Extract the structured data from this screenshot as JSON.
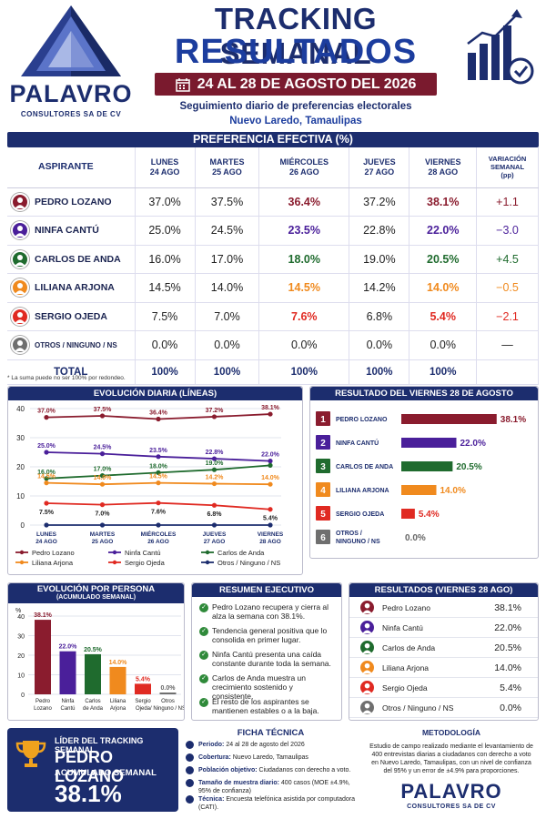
{
  "brand": {
    "name": "PALAVRO",
    "sub": "CONSULTORES SA DE CV"
  },
  "header": {
    "title1": "TRACKING SEMANAL",
    "title2": "RESULTADOS",
    "date": "24 AL 28 DE AGOSTO DEL 2026",
    "subtitle": "Seguimiento diario de preferencias electorales",
    "location": "Nuevo Laredo, Tamaulipas"
  },
  "colors": {
    "navy": "#1c2d6e",
    "pedro": "#8a1c2e",
    "ninfa": "#4a1f9a",
    "carlos": "#1f6b2e",
    "liliana": "#f08a1e",
    "sergio": "#e02a22",
    "otros": "#6f6f6f"
  },
  "table": {
    "title": "PREFERENCIA EFECTIVA (%)",
    "headers": [
      {
        "l1": "ASPIRANTE",
        "l2": ""
      },
      {
        "l1": "LUNES",
        "l2": "24 AGO"
      },
      {
        "l1": "MARTES",
        "l2": "25 AGO"
      },
      {
        "l1": "MIÉRCOLES",
        "l2": "26 AGO"
      },
      {
        "l1": "JUEVES",
        "l2": "27 AGO"
      },
      {
        "l1": "VIERNES",
        "l2": "28 AGO"
      },
      {
        "l1": "VARIACIÓN SEMANAL",
        "l2": "(pp)"
      }
    ],
    "rows": [
      {
        "name": "PEDRO LOZANO",
        "color": "#8a1c2e",
        "vals": [
          "37.0%",
          "37.5%",
          "36.4%",
          "37.2%",
          "38.1%"
        ],
        "var": "+1.1"
      },
      {
        "name": "NINFA CANTÚ",
        "color": "#4a1f9a",
        "vals": [
          "25.0%",
          "24.5%",
          "23.5%",
          "22.8%",
          "22.0%"
        ],
        "var": "−3.0"
      },
      {
        "name": "CARLOS DE ANDA",
        "color": "#1f6b2e",
        "vals": [
          "16.0%",
          "17.0%",
          "18.0%",
          "19.0%",
          "20.5%"
        ],
        "var": "+4.5"
      },
      {
        "name": "LILIANA ARJONA",
        "color": "#f08a1e",
        "vals": [
          "14.5%",
          "14.0%",
          "14.5%",
          "14.2%",
          "14.0%"
        ],
        "var": "−0.5"
      },
      {
        "name": "SERGIO OJEDA",
        "color": "#e02a22",
        "vals": [
          "7.5%",
          "7.0%",
          "7.6%",
          "6.8%",
          "5.4%"
        ],
        "var": "−2.1"
      },
      {
        "name": "OTROS / NINGUNO / NS",
        "color": "#6f6f6f",
        "vals": [
          "0.0%",
          "0.0%",
          "0.0%",
          "0.0%",
          "0.0%"
        ],
        "var": "—"
      }
    ],
    "total": {
      "label": "TOTAL",
      "vals": [
        "100%",
        "100%",
        "100%",
        "100%",
        "100%"
      ]
    },
    "note": "* La suma puede no ser 100% por redondeo."
  },
  "chart_data": [
    {
      "type": "line",
      "title": "EVOLUCIÓN DIARIA (LÍNEAS)",
      "x": [
        "LUNES 24 AGO",
        "MARTES 25 AGO",
        "MIÉRCOLES 26 AGO",
        "JUEVES 27 AGO",
        "VIERNES 28 AGO"
      ],
      "ylim": [
        0,
        40
      ],
      "yticks": [
        0,
        10,
        20,
        30,
        40
      ],
      "series": [
        {
          "name": "Pedro Lozano",
          "color": "#8a1c2e",
          "values": [
            37.0,
            37.5,
            36.4,
            37.2,
            38.1
          ],
          "labels": [
            "37.0%",
            "37.5%",
            "36.4%",
            "37.2%",
            "38.1%"
          ]
        },
        {
          "name": "Ninfa Cantú",
          "color": "#4a1f9a",
          "values": [
            25.0,
            24.5,
            23.5,
            22.8,
            22.0
          ],
          "labels": [
            "25.0%",
            "24.5%",
            "23.5%",
            "22.8%",
            "22.0%"
          ]
        },
        {
          "name": "Carlos de Anda",
          "color": "#1f6b2e",
          "values": [
            16.0,
            17.0,
            18.0,
            19.0,
            20.5
          ],
          "labels": [
            "16.0%",
            "17.0%",
            "18.0%",
            "19.0%",
            ""
          ]
        },
        {
          "name": "Liliana Arjona",
          "color": "#f08a1e",
          "values": [
            14.5,
            14.0,
            14.5,
            14.2,
            14.0
          ],
          "labels": [
            "14.5%",
            "14.0%",
            "14.5%",
            "14.2%",
            "14.0%"
          ]
        },
        {
          "name": "Sergio Ojeda",
          "color": "#e02a22",
          "values": [
            7.5,
            7.0,
            7.6,
            6.8,
            5.4
          ],
          "labels": [
            "7.5%",
            "7.0%",
            "7.6%",
            "6.8%",
            "5.4%"
          ]
        },
        {
          "name": "Otros / Ninguno / NS",
          "color": "#1c2d6e",
          "values": [
            0,
            0,
            0,
            0,
            0
          ],
          "labels": [
            "",
            "",
            "",
            "",
            ""
          ]
        }
      ]
    },
    {
      "type": "bar",
      "title": "RESULTADO DEL VIERNES 28 DE AGOSTO",
      "categories": [
        "PEDRO LOZANO",
        "NINFA CANTÚ",
        "CARLOS DE ANDA",
        "LILIANA ARJONA",
        "SERGIO OJEDA",
        "OTROS / NINGUNO / NS"
      ],
      "ranks": [
        "1",
        "2",
        "3",
        "4",
        "5",
        "6"
      ],
      "values": [
        38.1,
        22.0,
        20.5,
        14.0,
        5.4,
        0.0
      ],
      "labels": [
        "38.1%",
        "22.0%",
        "20.5%",
        "14.0%",
        "5.4%",
        "0.0%"
      ],
      "colors": [
        "#8a1c2e",
        "#4a1f9a",
        "#1f6b2e",
        "#f08a1e",
        "#e02a22",
        "#6f6f6f"
      ],
      "xlim": [
        0,
        40
      ]
    },
    {
      "type": "bar",
      "title": "EVOLUCIÓN POR PERSONA",
      "subtitle": "(ACUMULADO SEMANAL)",
      "ylabel": "%",
      "categories": [
        "Pedro Lozano",
        "Ninfa Cantú",
        "Carlos de Anda",
        "Liliana Arjona",
        "Sergio Ojeda",
        "Otros / Ninguno / NS"
      ],
      "values": [
        38.1,
        22.0,
        20.5,
        14.0,
        5.4,
        0.0
      ],
      "labels": [
        "38.1%",
        "22.0%",
        "20.5%",
        "14.0%",
        "5.4%",
        "0.0%"
      ],
      "colors": [
        "#8a1c2e",
        "#4a1f9a",
        "#1f6b2e",
        "#f08a1e",
        "#e02a22",
        "#6f6f6f"
      ],
      "ylim": [
        0,
        40
      ],
      "yticks": [
        0,
        10,
        20,
        30,
        40
      ]
    }
  ],
  "resumen": {
    "title": "RESUMEN EJECUTIVO",
    "items": [
      "Pedro Lozano recupera y cierra al alza la semana con 38.1%.",
      "Tendencia general positiva que lo consolida en primer lugar.",
      "Ninfa Cantú presenta una caída constante durante toda la semana.",
      "Carlos de Anda muestra un crecimiento sostenido y consistente.",
      "El resto de los aspirantes se mantienen estables o a la baja."
    ]
  },
  "res28": {
    "title": "RESULTADOS (VIERNES 28 AGO)",
    "rows": [
      {
        "name": "Pedro Lozano",
        "val": "38.1%",
        "color": "#8a1c2e"
      },
      {
        "name": "Ninfa Cantú",
        "val": "22.0%",
        "color": "#4a1f9a"
      },
      {
        "name": "Carlos de Anda",
        "val": "20.5%",
        "color": "#1f6b2e"
      },
      {
        "name": "Liliana Arjona",
        "val": "14.0%",
        "color": "#f08a1e"
      },
      {
        "name": "Sergio Ojeda",
        "val": "5.4%",
        "color": "#e02a22"
      },
      {
        "name": "Otros / Ninguno / NS",
        "val": "0.0%",
        "color": "#6f6f6f"
      }
    ]
  },
  "leader": {
    "label": "LÍDER DEL TRACKING SEMANAL",
    "name": "PEDRO LOZANO",
    "acc": "ACUMULADO SEMANAL",
    "value": "38.1%"
  },
  "ficha": {
    "title": "FICHA TÉCNICA",
    "rows": [
      {
        "k": "Periodo:",
        "v": "24 al 28 de agosto del 2026"
      },
      {
        "k": "Cobertura:",
        "v": "Nuevo Laredo, Tamaulipas"
      },
      {
        "k": "Población objetivo:",
        "v": "Ciudadanos con derecho a voto."
      },
      {
        "k": "Tamaño de muestra diario:",
        "v": "400 casos (MOE ±4.9%, 95% de confianza)"
      },
      {
        "k": "Técnica:",
        "v": "Encuesta telefónica asistida por computadora (CATI)."
      }
    ]
  },
  "metodo": {
    "title": "METODOLOGÍA",
    "text": "Estudio de campo realizado mediante el levantamiento de 400 entrevistas diarias a ciudadanos con derecho a voto en Nuevo Laredo, Tamaulipas, con un nivel de confianza del 95% y un error de ±4.9% para proporciones."
  }
}
